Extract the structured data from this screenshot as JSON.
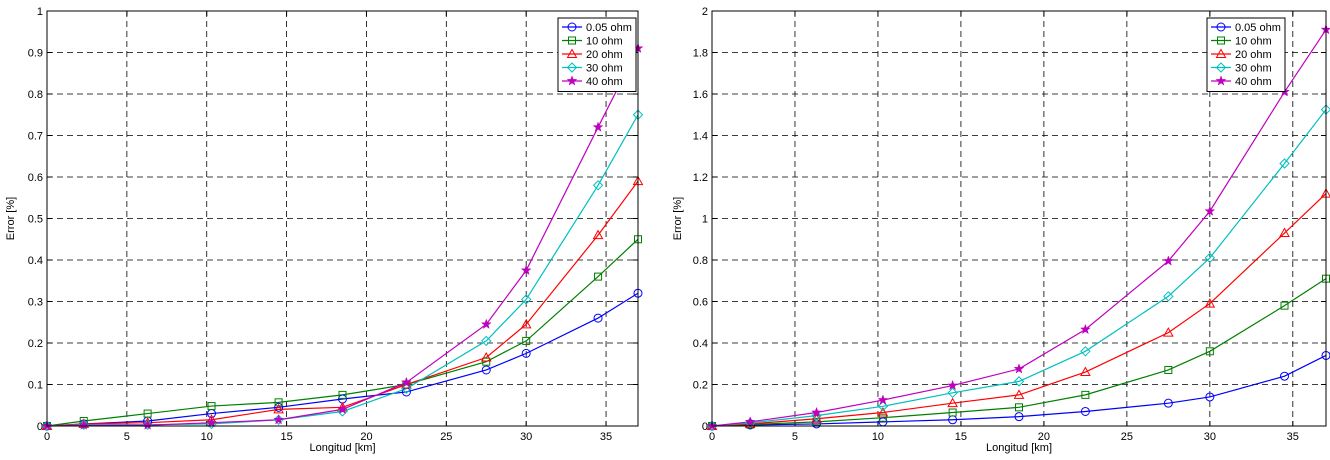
{
  "chart_data": [
    {
      "type": "line",
      "xlabel": "Longitud [km]",
      "ylabel": "Error [%]",
      "xlim": [
        0,
        37
      ],
      "ylim": [
        0,
        1
      ],
      "xticks": [
        "0",
        "5",
        "10",
        "15",
        "20",
        "25",
        "30",
        "35"
      ],
      "yticks": [
        "0",
        "0.1",
        "0.2",
        "0.3",
        "0.4",
        "0.5",
        "0.6",
        "0.7",
        "0.8",
        "0.9",
        "1"
      ],
      "grid": true,
      "legend_position": "top-right",
      "x": [
        0,
        2.3,
        6.3,
        10.3,
        14.5,
        18.5,
        22.5,
        27.5,
        30,
        34.5,
        37
      ],
      "series": [
        {
          "name": "0.05 ohm",
          "color": "#0000ff",
          "marker": "circle",
          "values": [
            0,
            0.005,
            0.012,
            0.03,
            0.045,
            0.065,
            0.082,
            0.135,
            0.175,
            0.26,
            0.32
          ]
        },
        {
          "name": "10 ohm",
          "color": "#008000",
          "marker": "square",
          "values": [
            0,
            0.012,
            0.03,
            0.048,
            0.057,
            0.075,
            0.1,
            0.155,
            0.205,
            0.36,
            0.45
          ]
        },
        {
          "name": "20 ohm",
          "color": "#ff0000",
          "marker": "triangle",
          "values": [
            0,
            0.005,
            0.008,
            0.015,
            0.04,
            0.045,
            0.1,
            0.165,
            0.245,
            0.46,
            0.59
          ]
        },
        {
          "name": "30 ohm",
          "color": "#00bfbf",
          "marker": "diamond",
          "values": [
            0,
            0.003,
            0.003,
            0.005,
            0.015,
            0.035,
            0.09,
            0.205,
            0.305,
            0.58,
            0.75
          ]
        },
        {
          "name": "40 ohm",
          "color": "#bf00bf",
          "marker": "star",
          "values": [
            0,
            0.002,
            0.002,
            0.008,
            0.015,
            0.04,
            0.105,
            0.245,
            0.375,
            0.72,
            0.91
          ]
        }
      ]
    },
    {
      "type": "line",
      "xlabel": "Longitud [km]",
      "ylabel": "Error [%]",
      "xlim": [
        0,
        37
      ],
      "ylim": [
        0,
        2
      ],
      "xticks": [
        "0",
        "5",
        "10",
        "15",
        "20",
        "25",
        "30",
        "35"
      ],
      "yticks": [
        "0",
        "0.2",
        "0.4",
        "0.6",
        "0.8",
        "1",
        "1.2",
        "1.4",
        "1.6",
        "1.8",
        "2"
      ],
      "grid": true,
      "legend_position": "top-right",
      "x": [
        0,
        2.3,
        6.3,
        10.3,
        14.5,
        18.5,
        22.5,
        27.5,
        30,
        34.5,
        37
      ],
      "series": [
        {
          "name": "0.05 ohm",
          "color": "#0000ff",
          "marker": "circle",
          "values": [
            0,
            0.005,
            0.01,
            0.02,
            0.03,
            0.045,
            0.07,
            0.11,
            0.14,
            0.24,
            0.34
          ]
        },
        {
          "name": "10 ohm",
          "color": "#008000",
          "marker": "square",
          "values": [
            0,
            0.007,
            0.02,
            0.04,
            0.065,
            0.09,
            0.15,
            0.27,
            0.36,
            0.58,
            0.71
          ]
        },
        {
          "name": "20 ohm",
          "color": "#ff0000",
          "marker": "triangle",
          "values": [
            0,
            0.01,
            0.035,
            0.065,
            0.11,
            0.15,
            0.26,
            0.45,
            0.59,
            0.93,
            1.12
          ]
        },
        {
          "name": "30 ohm",
          "color": "#00bfbf",
          "marker": "diamond",
          "values": [
            0,
            0.015,
            0.05,
            0.095,
            0.16,
            0.215,
            0.36,
            0.625,
            0.81,
            1.265,
            1.525
          ]
        },
        {
          "name": "40 ohm",
          "color": "#bf00bf",
          "marker": "star",
          "values": [
            0,
            0.02,
            0.065,
            0.125,
            0.195,
            0.275,
            0.465,
            0.795,
            1.035,
            1.61,
            1.91
          ]
        }
      ]
    }
  ]
}
